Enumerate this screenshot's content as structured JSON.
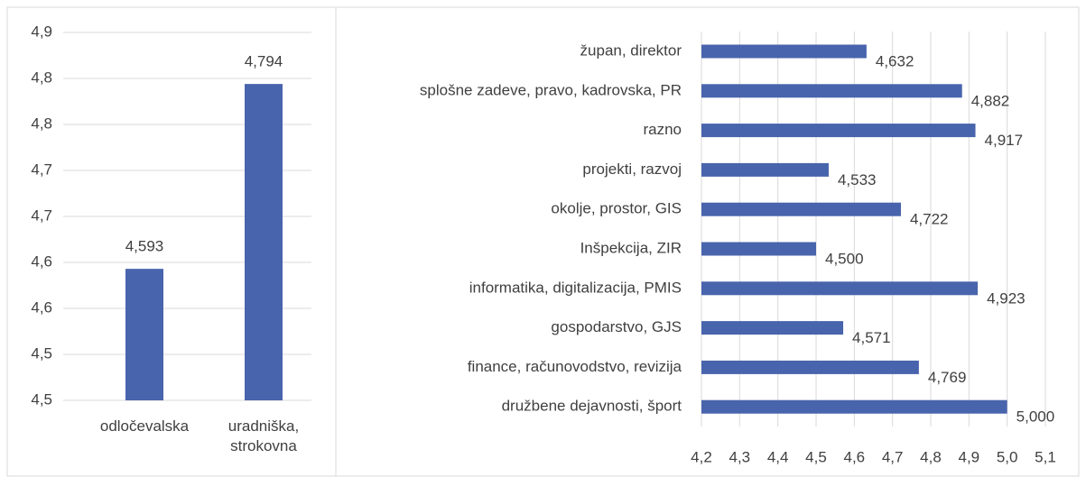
{
  "chart_data": [
    {
      "type": "bar",
      "categories": [
        "odločevalska",
        "uradniška, strokovna"
      ],
      "values": [
        4.593,
        4.794
      ],
      "value_labels": [
        "4,593",
        "4,794"
      ],
      "color": "#4864ac",
      "ylim": [
        4.45,
        4.85
      ],
      "yticks": [
        {
          "value": 4.45,
          "label": "4,5"
        },
        {
          "value": 4.5,
          "label": "4,5"
        },
        {
          "value": 4.55,
          "label": "4,6"
        },
        {
          "value": 4.6,
          "label": "4,6"
        },
        {
          "value": 4.65,
          "label": "4,7"
        },
        {
          "value": 4.7,
          "label": "4,7"
        },
        {
          "value": 4.75,
          "label": "4,8"
        },
        {
          "value": 4.8,
          "label": "4,8"
        },
        {
          "value": 4.85,
          "label": "4,9"
        }
      ],
      "grid": true
    },
    {
      "type": "hbar",
      "categories": [
        "župan, direktor",
        "splošne zadeve, pravo, kadrovska, PR",
        "razno",
        "projekti, razvoj",
        "okolje, prostor, GIS",
        "Inšpekcija, ZIR",
        "informatika, digitalizacija, PMIS",
        "gospodarstvo, GJS",
        "finance, računovodstvo, revizija",
        "družbene dejavnosti, šport"
      ],
      "values": [
        4.632,
        4.882,
        4.917,
        4.533,
        4.722,
        4.5,
        4.923,
        4.571,
        4.769,
        5.0
      ],
      "value_labels": [
        "4,632",
        "4,882",
        "4,917",
        "4,533",
        "4,722",
        "4,500",
        "4,923",
        "4,571",
        "4,769",
        "5,000"
      ],
      "color": "#4864ac",
      "xlim": [
        4.2,
        5.1
      ],
      "xticks": [
        {
          "value": 4.2,
          "label": "4,2"
        },
        {
          "value": 4.3,
          "label": "4,3"
        },
        {
          "value": 4.4,
          "label": "4,4"
        },
        {
          "value": 4.5,
          "label": "4,5"
        },
        {
          "value": 4.6,
          "label": "4,6"
        },
        {
          "value": 4.7,
          "label": "4,7"
        },
        {
          "value": 4.8,
          "label": "4,8"
        },
        {
          "value": 4.9,
          "label": "4,9"
        },
        {
          "value": 5.0,
          "label": "5,0"
        },
        {
          "value": 5.1,
          "label": "5,1"
        }
      ],
      "grid": true
    }
  ]
}
